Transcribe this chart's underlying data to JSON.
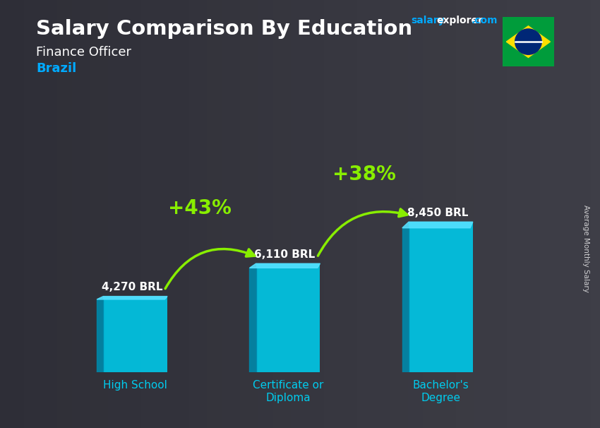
{
  "title": "Salary Comparison By Education",
  "subtitle": "Finance Officer",
  "country": "Brazil",
  "categories": [
    "High School",
    "Certificate or\nDiploma",
    "Bachelor's\nDegree"
  ],
  "values": [
    4270,
    6110,
    8450
  ],
  "value_labels": [
    "4,270 BRL",
    "6,110 BRL",
    "8,450 BRL"
  ],
  "pct_labels": [
    "+43%",
    "+38%"
  ],
  "bar_face_color": "#00c8e8",
  "bar_side_color": "#0088aa",
  "bar_top_color": "#55e0ff",
  "bg_color": "#4a4a5a",
  "overlay_color": "#1a1a2a",
  "overlay_alpha": 0.55,
  "title_color": "#ffffff",
  "subtitle_color": "#ffffff",
  "country_color": "#00aaff",
  "value_label_color": "#ffffff",
  "pct_color": "#88ee00",
  "arrow_color": "#88ee00",
  "xlabel_color": "#00ccee",
  "side_label": "Average Monthly Salary",
  "watermark_salary_color": "#00aaff",
  "watermark_explorer_color": "#ffffff",
  "watermark_com_color": "#00aaff",
  "figsize": [
    8.5,
    6.06
  ],
  "dpi": 100
}
